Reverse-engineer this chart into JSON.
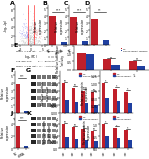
{
  "bg_color": "#ffffff",
  "red_color": "#c0202a",
  "blue_color": "#2040a0",
  "gray_color": "#888888",
  "panel_b_vals": [
    4.0,
    0.4
  ],
  "panel_c_vals": [
    3.8,
    0.5
  ],
  "panel_d_vals": [
    3.5,
    0.6
  ],
  "panel_f_vals": [
    3.8,
    0.3
  ],
  "panel_j_vals": [
    3.6,
    0.4
  ],
  "eg_nc": [
    1.0,
    0.62,
    0.55
  ],
  "eg_siRNA": [
    0.95,
    0.28,
    0.22
  ],
  "gh_nc": [
    1.0,
    0.85,
    0.75,
    0.7
  ],
  "gh_si": [
    0.45,
    0.38,
    0.32,
    0.28
  ],
  "gi_nc": [
    1.0,
    0.82,
    0.72
  ],
  "gi_si": [
    0.5,
    0.4,
    0.32
  ],
  "kl_nc": [
    1.0,
    0.88,
    0.78,
    0.72
  ],
  "kl_si": [
    0.48,
    0.4,
    0.34,
    0.3
  ],
  "km_nc": [
    1.0,
    0.85,
    0.75
  ],
  "km_si": [
    0.5,
    0.42,
    0.35
  ],
  "lfs": 2.8,
  "tfs": 2.2
}
